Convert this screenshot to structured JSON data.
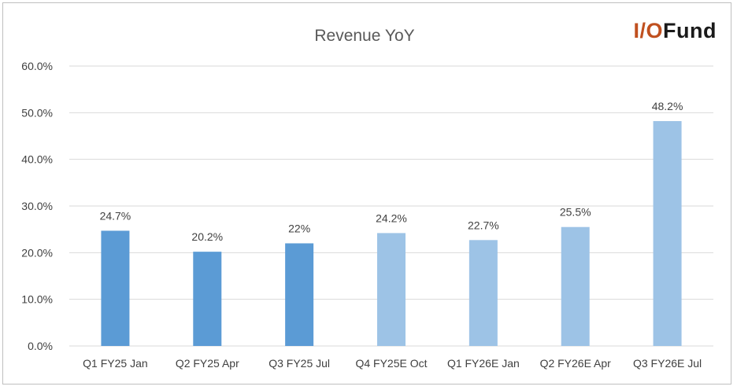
{
  "chart_data": {
    "type": "bar",
    "title": "Revenue YoY",
    "categories": [
      "Q1 FY25 Jan",
      "Q2 FY25 Apr",
      "Q3 FY25 Jul",
      "Q4 FY25E Oct",
      "Q1 FY26E Jan",
      "Q2 FY26E Apr",
      "Q3 FY26E Jul"
    ],
    "values": [
      24.7,
      20.2,
      22.0,
      24.2,
      22.7,
      25.5,
      48.2
    ],
    "value_labels": [
      "24.7%",
      "20.2%",
      "22%",
      "24.2%",
      "22.7%",
      "25.5%",
      "48.2%"
    ],
    "bar_kind": [
      "actual",
      "actual",
      "actual",
      "estimate",
      "estimate",
      "estimate",
      "estimate"
    ],
    "ylim": [
      0,
      60
    ],
    "yticks": [
      0,
      10,
      20,
      30,
      40,
      50,
      60
    ],
    "ytick_labels": [
      "0.0%",
      "10.0%",
      "20.0%",
      "30.0%",
      "40.0%",
      "50.0%",
      "60.0%"
    ],
    "grid": true,
    "xlabel": "",
    "ylabel": ""
  },
  "colors": {
    "actual": "#5b9bd5",
    "estimate": "#9dc3e6",
    "grid": "#d9d9d9",
    "text": "#404040",
    "logo_accent": "#c0501f"
  },
  "logo": {
    "io": "I/O",
    "fund": "Fund"
  }
}
